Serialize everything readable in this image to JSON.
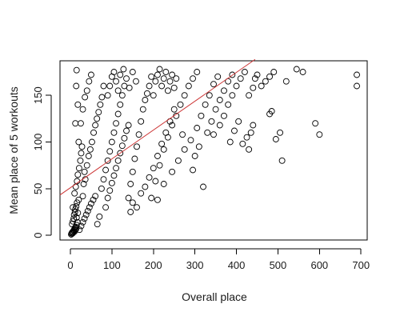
{
  "chart_data": {
    "type": "scatter",
    "title": "",
    "xlabel": "Overall place",
    "ylabel": "Mean place of 5 workouts",
    "xlim": [
      -25,
      715
    ],
    "ylim": [
      -5,
      187
    ],
    "x_ticks": [
      0,
      100,
      200,
      300,
      400,
      500,
      600,
      700
    ],
    "x_tick_labels": [
      "0",
      "100",
      "200",
      "300",
      "400",
      "500",
      "600",
      "700"
    ],
    "y_ticks": [
      0,
      50,
      100,
      150
    ],
    "y_tick_labels": [
      "0",
      "50",
      "100",
      "150"
    ],
    "grid": false,
    "legend": "none",
    "marker": "open-circle",
    "point_color": "#000000",
    "fit_line": {
      "color": "#cc3333",
      "intercept": 51,
      "slope": 0.309,
      "x_range": [
        -25,
        445
      ]
    },
    "series": [
      {
        "points": [
          [
            2,
            1
          ],
          [
            3,
            2
          ],
          [
            4,
            3
          ],
          [
            5,
            2
          ],
          [
            6,
            4
          ],
          [
            7,
            3
          ],
          [
            8,
            5
          ],
          [
            9,
            6
          ],
          [
            10,
            4
          ],
          [
            11,
            8
          ],
          [
            12,
            6
          ],
          [
            13,
            9
          ],
          [
            14,
            7
          ],
          [
            15,
            11
          ],
          [
            4,
            12
          ],
          [
            6,
            15
          ],
          [
            8,
            18
          ],
          [
            9,
            22
          ],
          [
            11,
            25
          ],
          [
            12,
            28
          ],
          [
            14,
            31
          ],
          [
            15,
            19
          ],
          [
            16,
            35
          ],
          [
            17,
            14
          ],
          [
            18,
            24
          ],
          [
            20,
            38
          ],
          [
            6,
            30
          ],
          [
            10,
            45
          ],
          [
            13,
            52
          ],
          [
            16,
            58
          ],
          [
            18,
            65
          ],
          [
            21,
            72
          ],
          [
            24,
            80
          ],
          [
            26,
            88
          ],
          [
            28,
            95
          ],
          [
            30,
            42
          ],
          [
            32,
            55
          ],
          [
            34,
            68
          ],
          [
            22,
            6
          ],
          [
            26,
            10
          ],
          [
            30,
            14
          ],
          [
            34,
            18
          ],
          [
            38,
            22
          ],
          [
            42,
            26
          ],
          [
            46,
            30
          ],
          [
            50,
            34
          ],
          [
            55,
            38
          ],
          [
            60,
            42
          ],
          [
            65,
            12
          ],
          [
            70,
            20
          ],
          [
            36,
            60
          ],
          [
            40,
            75
          ],
          [
            44,
            85
          ],
          [
            48,
            92
          ],
          [
            52,
            100
          ],
          [
            56,
            110
          ],
          [
            60,
            118
          ],
          [
            64,
            125
          ],
          [
            68,
            132
          ],
          [
            72,
            140
          ],
          [
            76,
            148
          ],
          [
            80,
            160
          ],
          [
            25,
            120
          ],
          [
            30,
            135
          ],
          [
            35,
            148
          ],
          [
            40,
            155
          ],
          [
            45,
            165
          ],
          [
            50,
            172
          ],
          [
            12,
            120
          ],
          [
            14,
            160
          ],
          [
            15,
            177
          ],
          [
            20,
            100
          ],
          [
            18,
            140
          ],
          [
            75,
            50
          ],
          [
            80,
            60
          ],
          [
            85,
            70
          ],
          [
            90,
            80
          ],
          [
            95,
            90
          ],
          [
            100,
            100
          ],
          [
            105,
            110
          ],
          [
            110,
            120
          ],
          [
            115,
            130
          ],
          [
            120,
            140
          ],
          [
            125,
            150
          ],
          [
            130,
            160
          ],
          [
            85,
            30
          ],
          [
            90,
            40
          ],
          [
            95,
            48
          ],
          [
            100,
            56
          ],
          [
            105,
            64
          ],
          [
            110,
            72
          ],
          [
            115,
            80
          ],
          [
            120,
            88
          ],
          [
            125,
            96
          ],
          [
            130,
            104
          ],
          [
            135,
            112
          ],
          [
            140,
            118
          ],
          [
            90,
            150
          ],
          [
            95,
            160
          ],
          [
            100,
            170
          ],
          [
            105,
            175
          ],
          [
            110,
            165
          ],
          [
            115,
            155
          ],
          [
            120,
            172
          ],
          [
            128,
            178
          ],
          [
            135,
            168
          ],
          [
            142,
            158
          ],
          [
            150,
            175
          ],
          [
            158,
            165
          ],
          [
            140,
            40
          ],
          [
            145,
            55
          ],
          [
            150,
            68
          ],
          [
            155,
            82
          ],
          [
            160,
            95
          ],
          [
            165,
            108
          ],
          [
            170,
            122
          ],
          [
            175,
            135
          ],
          [
            180,
            145
          ],
          [
            185,
            152
          ],
          [
            190,
            160
          ],
          [
            195,
            170
          ],
          [
            145,
            25
          ],
          [
            150,
            35
          ],
          [
            160,
            30
          ],
          [
            170,
            45
          ],
          [
            180,
            52
          ],
          [
            190,
            62
          ],
          [
            200,
            72
          ],
          [
            210,
            85
          ],
          [
            220,
            98
          ],
          [
            230,
            110
          ],
          [
            240,
            122
          ],
          [
            250,
            135
          ],
          [
            200,
            150
          ],
          [
            205,
            165
          ],
          [
            210,
            172
          ],
          [
            215,
            178
          ],
          [
            220,
            160
          ],
          [
            225,
            168
          ],
          [
            230,
            175
          ],
          [
            235,
            155
          ],
          [
            240,
            165
          ],
          [
            245,
            172
          ],
          [
            250,
            158
          ],
          [
            255,
            168
          ],
          [
            195,
            40
          ],
          [
            205,
            58
          ],
          [
            215,
            75
          ],
          [
            225,
            92
          ],
          [
            235,
            105
          ],
          [
            245,
            118
          ],
          [
            255,
            128
          ],
          [
            265,
            140
          ],
          [
            275,
            150
          ],
          [
            285,
            160
          ],
          [
            295,
            168
          ],
          [
            305,
            175
          ],
          [
            210,
            38
          ],
          [
            225,
            55
          ],
          [
            245,
            68
          ],
          [
            260,
            80
          ],
          [
            275,
            92
          ],
          [
            290,
            102
          ],
          [
            305,
            115
          ],
          [
            315,
            128
          ],
          [
            325,
            140
          ],
          [
            335,
            150
          ],
          [
            345,
            162
          ],
          [
            355,
            170
          ],
          [
            270,
            108
          ],
          [
            295,
            70
          ],
          [
            300,
            85
          ],
          [
            310,
            95
          ],
          [
            320,
            52
          ],
          [
            330,
            110
          ],
          [
            340,
            122
          ],
          [
            350,
            135
          ],
          [
            360,
            145
          ],
          [
            370,
            155
          ],
          [
            380,
            165
          ],
          [
            390,
            172
          ],
          [
            345,
            108
          ],
          [
            360,
            118
          ],
          [
            370,
            128
          ],
          [
            380,
            140
          ],
          [
            390,
            150
          ],
          [
            400,
            160
          ],
          [
            410,
            168
          ],
          [
            420,
            175
          ],
          [
            430,
            150
          ],
          [
            440,
            158
          ],
          [
            445,
            168
          ],
          [
            450,
            172
          ],
          [
            385,
            100
          ],
          [
            395,
            112
          ],
          [
            405,
            122
          ],
          [
            415,
            98
          ],
          [
            425,
            105
          ],
          [
            430,
            92
          ],
          [
            435,
            110
          ],
          [
            440,
            118
          ],
          [
            460,
            160
          ],
          [
            470,
            165
          ],
          [
            480,
            170
          ],
          [
            490,
            175
          ],
          [
            480,
            130
          ],
          [
            485,
            133
          ],
          [
            495,
            103
          ],
          [
            505,
            110
          ],
          [
            510,
            80
          ],
          [
            520,
            165
          ],
          [
            545,
            178
          ],
          [
            560,
            175
          ],
          [
            590,
            120
          ],
          [
            600,
            108
          ],
          [
            690,
            172
          ],
          [
            690,
            160
          ]
        ]
      }
    ]
  }
}
